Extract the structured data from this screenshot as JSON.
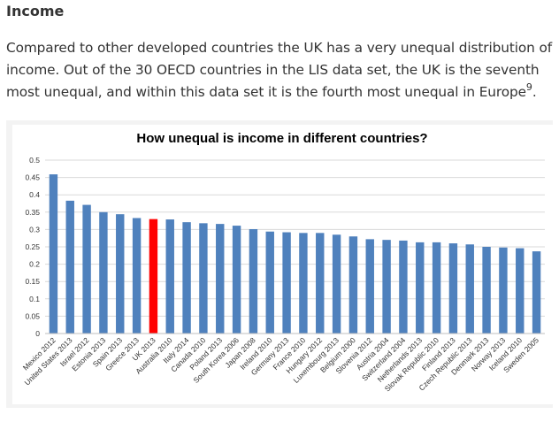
{
  "section": {
    "heading": "Income",
    "paragraph": "Compared to other developed countries the UK has a very unequal distribution of income. Out of the 30 OECD countries in the LIS data set, the UK is the seventh most unequal, and within this data set it is the fourth most unequal in Europe",
    "footnote_ref": "9",
    "paragraph_end": "."
  },
  "colors": {
    "bar": "#4f81bd",
    "highlight": "#ff0000",
    "grid": "#d9d9d9"
  },
  "chart_data": {
    "type": "bar",
    "title": "How unequal is income in different countries?",
    "xlabel": "",
    "ylabel": "",
    "ylim": [
      0,
      0.5
    ],
    "yticks": [
      "0",
      "0.05",
      "0.1",
      "0.15",
      "0.2",
      "0.25",
      "0.3",
      "0.35",
      "0.4",
      "0.45",
      "0.5"
    ],
    "grid": true,
    "legend": "none",
    "highlight_category": "UK 2013",
    "categories": [
      "Mexico 2012",
      "United States 2013",
      "Israel 2012",
      "Estonia 2013",
      "Spain 2013",
      "Greece 2013",
      "UK 2013",
      "Australia 2010",
      "Italy 2014",
      "Canada 2010",
      "Poland 2013",
      "South Korea 2006",
      "Japan 2008",
      "Ireland 2010",
      "Germany 2013",
      "France 2010",
      "Hungary 2012",
      "Luxembourg 2013",
      "Belgium 2000",
      "Slovenia 2012",
      "Austria 2004",
      "Switzerland 2004",
      "Netherlands 2013",
      "Slovak Republic 2010",
      "Finland 2013",
      "Czech Republic 2013",
      "Denmark 2013",
      "Norway 2013",
      "Iceland 2010",
      "Sweden 2005"
    ],
    "values": [
      0.459,
      0.383,
      0.371,
      0.35,
      0.344,
      0.333,
      0.33,
      0.329,
      0.321,
      0.318,
      0.316,
      0.311,
      0.301,
      0.294,
      0.292,
      0.29,
      0.29,
      0.285,
      0.28,
      0.272,
      0.27,
      0.268,
      0.263,
      0.263,
      0.26,
      0.257,
      0.25,
      0.248,
      0.246,
      0.237
    ]
  }
}
